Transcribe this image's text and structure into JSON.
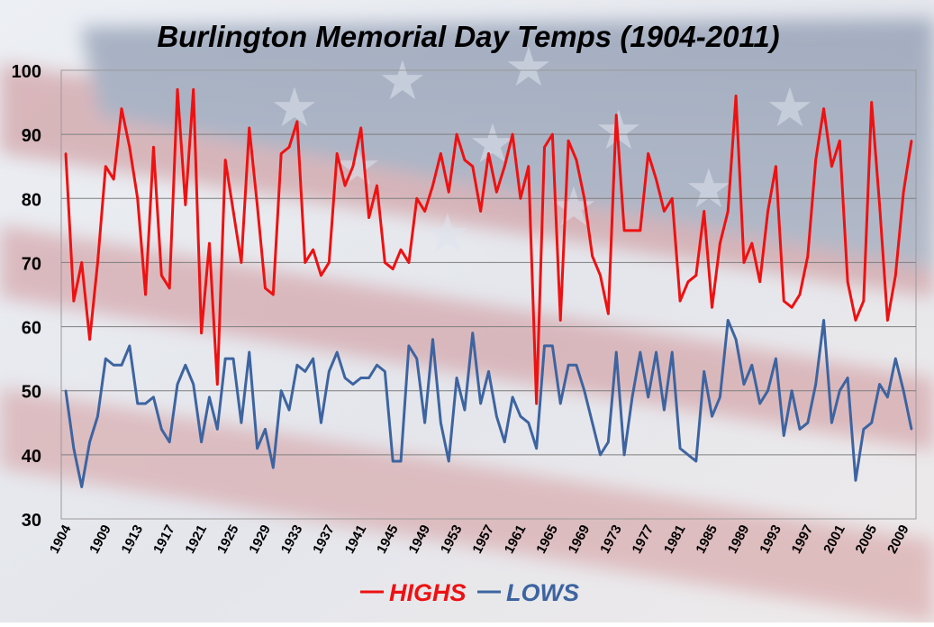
{
  "chart_data": {
    "type": "line",
    "title": "Burlington Memorial Day Temps (1904-2011)",
    "xlabel": "",
    "ylabel": "",
    "ylim": [
      30,
      100
    ],
    "yticks": [
      30,
      40,
      50,
      60,
      70,
      80,
      90,
      100
    ],
    "x_tick_labels": [
      "1904",
      "1909",
      "1913",
      "1917",
      "1921",
      "1925",
      "1929",
      "1933",
      "1937",
      "1941",
      "1945",
      "1949",
      "1953",
      "1957",
      "1961",
      "1965",
      "1969",
      "1973",
      "1977",
      "1981",
      "1985",
      "1989",
      "1993",
      "1997",
      "2001",
      "2005",
      "2009"
    ],
    "grid": true,
    "legend_position": "bottom",
    "colors": {
      "highs": "#ee1111",
      "lows": "#3d64a0"
    },
    "series": [
      {
        "name": "HIGHS",
        "color": "#ee1111",
        "points": [
          [
            "1904",
            87
          ],
          [
            "1905",
            64
          ],
          [
            "1906",
            70
          ],
          [
            "1907",
            58
          ],
          [
            "1908",
            70
          ],
          [
            "1909",
            85
          ],
          [
            "1910",
            83
          ],
          [
            "1911",
            94
          ],
          [
            "1912",
            88
          ],
          [
            "1913",
            80
          ],
          [
            "1914",
            65
          ],
          [
            "1915",
            88
          ],
          [
            "1916",
            68
          ],
          [
            "1917",
            66
          ],
          [
            "1918",
            97
          ],
          [
            "1919",
            79
          ],
          [
            "1920",
            97
          ],
          [
            "1921",
            59
          ],
          [
            "1922",
            73
          ],
          [
            "1923",
            51
          ],
          [
            "1924",
            86
          ],
          [
            "1925",
            78
          ],
          [
            "1926",
            70
          ],
          [
            "1927",
            91
          ],
          [
            "1928",
            79
          ],
          [
            "1929",
            66
          ],
          [
            "1930",
            65
          ],
          [
            "1931",
            87
          ],
          [
            "1932",
            88
          ],
          [
            "1933",
            92
          ],
          [
            "1934",
            70
          ],
          [
            "1935",
            72
          ],
          [
            "1936",
            68
          ],
          [
            "1937",
            70
          ],
          [
            "1938",
            87
          ],
          [
            "1939",
            82
          ],
          [
            "1940",
            85
          ],
          [
            "1941",
            91
          ],
          [
            "1942",
            77
          ],
          [
            "1943",
            82
          ],
          [
            "1944",
            70
          ],
          [
            "1945",
            69
          ],
          [
            "1946",
            72
          ],
          [
            "1947",
            70
          ],
          [
            "1948",
            80
          ],
          [
            "1949",
            78
          ],
          [
            "1950",
            82
          ],
          [
            "1951",
            87
          ],
          [
            "1952",
            81
          ],
          [
            "1953",
            90
          ],
          [
            "1954",
            86
          ],
          [
            "1955",
            85
          ],
          [
            "1956",
            78
          ],
          [
            "1957",
            87
          ],
          [
            "1958",
            81
          ],
          [
            "1959",
            85
          ],
          [
            "1960",
            90
          ],
          [
            "1961",
            80
          ],
          [
            "1962",
            85
          ],
          [
            "1963",
            48
          ],
          [
            "1964",
            88
          ],
          [
            "1965",
            90
          ],
          [
            "1966",
            61
          ],
          [
            "1967",
            89
          ],
          [
            "1968",
            86
          ],
          [
            "1969",
            80
          ],
          [
            "1970",
            71
          ],
          [
            "1971",
            68
          ],
          [
            "1972",
            62
          ],
          [
            "1973",
            93
          ],
          [
            "1974",
            75
          ],
          [
            "1975",
            75
          ],
          [
            "1976",
            75
          ],
          [
            "1977",
            87
          ],
          [
            "1978",
            83
          ],
          [
            "1979",
            78
          ],
          [
            "1980",
            80
          ],
          [
            "1981",
            64
          ],
          [
            "1982",
            67
          ],
          [
            "1983",
            68
          ],
          [
            "1984",
            78
          ],
          [
            "1985",
            63
          ],
          [
            "1986",
            73
          ],
          [
            "1987",
            78
          ],
          [
            "1988",
            96
          ],
          [
            "1989",
            70
          ],
          [
            "1990",
            73
          ],
          [
            "1991",
            67
          ],
          [
            "1992",
            78
          ],
          [
            "1993",
            85
          ],
          [
            "1994",
            64
          ],
          [
            "1995",
            63
          ],
          [
            "1996",
            65
          ],
          [
            "1997",
            71
          ],
          [
            "1998",
            86
          ],
          [
            "1999",
            94
          ],
          [
            "2000",
            85
          ],
          [
            "2001",
            89
          ],
          [
            "2002",
            67
          ],
          [
            "2003",
            61
          ],
          [
            "2004",
            64
          ],
          [
            "2005",
            95
          ],
          [
            "2006",
            79
          ],
          [
            "2007",
            61
          ],
          [
            "2008",
            68
          ],
          [
            "2009",
            81
          ],
          [
            "2010",
            89
          ]
        ]
      },
      {
        "name": "LOWS",
        "color": "#3d64a0",
        "points": [
          [
            "1904",
            50
          ],
          [
            "1905",
            41
          ],
          [
            "1906",
            35
          ],
          [
            "1907",
            42
          ],
          [
            "1908",
            46
          ],
          [
            "1909",
            55
          ],
          [
            "1910",
            54
          ],
          [
            "1911",
            54
          ],
          [
            "1912",
            57
          ],
          [
            "1913",
            48
          ],
          [
            "1914",
            48
          ],
          [
            "1915",
            49
          ],
          [
            "1916",
            44
          ],
          [
            "1917",
            42
          ],
          [
            "1918",
            51
          ],
          [
            "1919",
            54
          ],
          [
            "1920",
            51
          ],
          [
            "1921",
            42
          ],
          [
            "1922",
            49
          ],
          [
            "1923",
            44
          ],
          [
            "1924",
            55
          ],
          [
            "1925",
            55
          ],
          [
            "1926",
            45
          ],
          [
            "1927",
            56
          ],
          [
            "1928",
            41
          ],
          [
            "1929",
            44
          ],
          [
            "1930",
            38
          ],
          [
            "1931",
            50
          ],
          [
            "1932",
            47
          ],
          [
            "1933",
            54
          ],
          [
            "1934",
            53
          ],
          [
            "1935",
            55
          ],
          [
            "1936",
            45
          ],
          [
            "1937",
            53
          ],
          [
            "1938",
            56
          ],
          [
            "1939",
            52
          ],
          [
            "1940",
            51
          ],
          [
            "1941",
            52
          ],
          [
            "1942",
            52
          ],
          [
            "1943",
            54
          ],
          [
            "1944",
            53
          ],
          [
            "1945",
            39
          ],
          [
            "1946",
            39
          ],
          [
            "1947",
            57
          ],
          [
            "1948",
            55
          ],
          [
            "1949",
            45
          ],
          [
            "1950",
            58
          ],
          [
            "1951",
            45
          ],
          [
            "1952",
            39
          ],
          [
            "1953",
            52
          ],
          [
            "1954",
            47
          ],
          [
            "1955",
            59
          ],
          [
            "1956",
            48
          ],
          [
            "1957",
            53
          ],
          [
            "1958",
            46
          ],
          [
            "1959",
            42
          ],
          [
            "1960",
            49
          ],
          [
            "1961",
            46
          ],
          [
            "1962",
            45
          ],
          [
            "1963",
            41
          ],
          [
            "1964",
            57
          ],
          [
            "1965",
            57
          ],
          [
            "1966",
            48
          ],
          [
            "1967",
            54
          ],
          [
            "1968",
            54
          ],
          [
            "1969",
            50
          ],
          [
            "1970",
            45
          ],
          [
            "1971",
            40
          ],
          [
            "1972",
            42
          ],
          [
            "1973",
            56
          ],
          [
            "1974",
            40
          ],
          [
            "1975",
            49
          ],
          [
            "1976",
            56
          ],
          [
            "1977",
            49
          ],
          [
            "1978",
            56
          ],
          [
            "1979",
            47
          ],
          [
            "1980",
            56
          ],
          [
            "1981",
            41
          ],
          [
            "1982",
            40
          ],
          [
            "1983",
            39
          ],
          [
            "1984",
            53
          ],
          [
            "1985",
            46
          ],
          [
            "1986",
            49
          ],
          [
            "1987",
            61
          ],
          [
            "1988",
            58
          ],
          [
            "1989",
            51
          ],
          [
            "1990",
            54
          ],
          [
            "1991",
            48
          ],
          [
            "1992",
            50
          ],
          [
            "1993",
            55
          ],
          [
            "1994",
            43
          ],
          [
            "1995",
            50
          ],
          [
            "1996",
            44
          ],
          [
            "1997",
            45
          ],
          [
            "1998",
            51
          ],
          [
            "1999",
            61
          ],
          [
            "2000",
            45
          ],
          [
            "2001",
            50
          ],
          [
            "2002",
            52
          ],
          [
            "2003",
            36
          ],
          [
            "2004",
            44
          ],
          [
            "2005",
            45
          ],
          [
            "2006",
            51
          ],
          [
            "2007",
            49
          ],
          [
            "2008",
            55
          ],
          [
            "2009",
            50
          ],
          [
            "2010",
            44
          ]
        ]
      }
    ]
  }
}
